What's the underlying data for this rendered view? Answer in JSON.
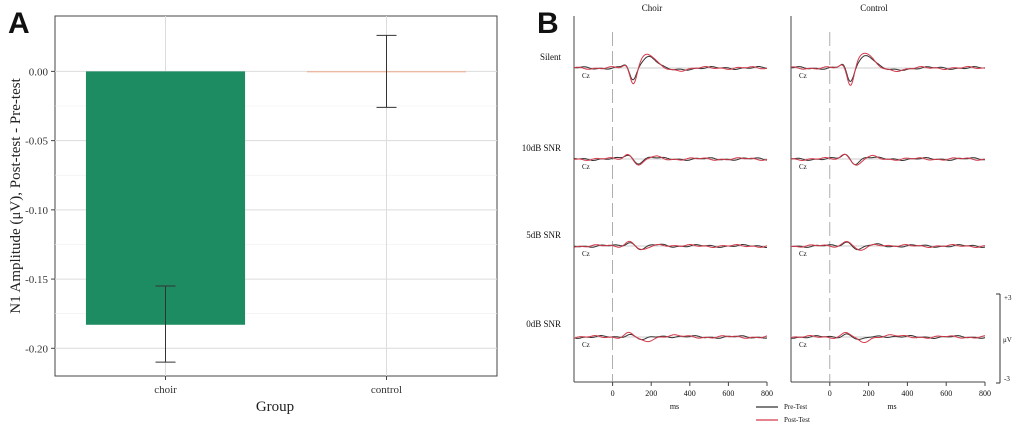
{
  "chart_data": [
    {
      "panel": "A",
      "type": "bar",
      "categories": [
        "choir",
        "control"
      ],
      "values": [
        -0.183,
        0.0
      ],
      "error_upper": [
        -0.155,
        0.026
      ],
      "error_lower": [
        -0.21,
        -0.026
      ],
      "bar_colors": [
        "#1e8c63",
        "#f4a582"
      ],
      "xlabel": "Group",
      "ylabel": "N1 Amplitude (μV), Post-test - Pre-test",
      "ylim": [
        -0.22,
        0.04
      ],
      "yticks": [
        0.0,
        -0.05,
        -0.1,
        -0.15,
        -0.2
      ],
      "ytick_labels": [
        "0.00",
        "-0.05",
        "-0.10",
        "-0.15",
        "-0.20"
      ]
    },
    {
      "panel": "B",
      "type": "line",
      "columns": [
        "Choir",
        "Control"
      ],
      "rows": [
        "Silent",
        "10dB SNR",
        "5dB SNR",
        "0dB SNR"
      ],
      "electrode": "Cz",
      "xlabel": "ms",
      "xlim": [
        -200,
        800
      ],
      "xticks": [
        0,
        200,
        400,
        600,
        800
      ],
      "ytick_labels": [
        "+3",
        "-3"
      ],
      "yunit": "μV",
      "legend": [
        "Pre-Test",
        "Post-Test"
      ],
      "series_colors": [
        "#333333",
        "#d43a4a"
      ]
    }
  ]
}
